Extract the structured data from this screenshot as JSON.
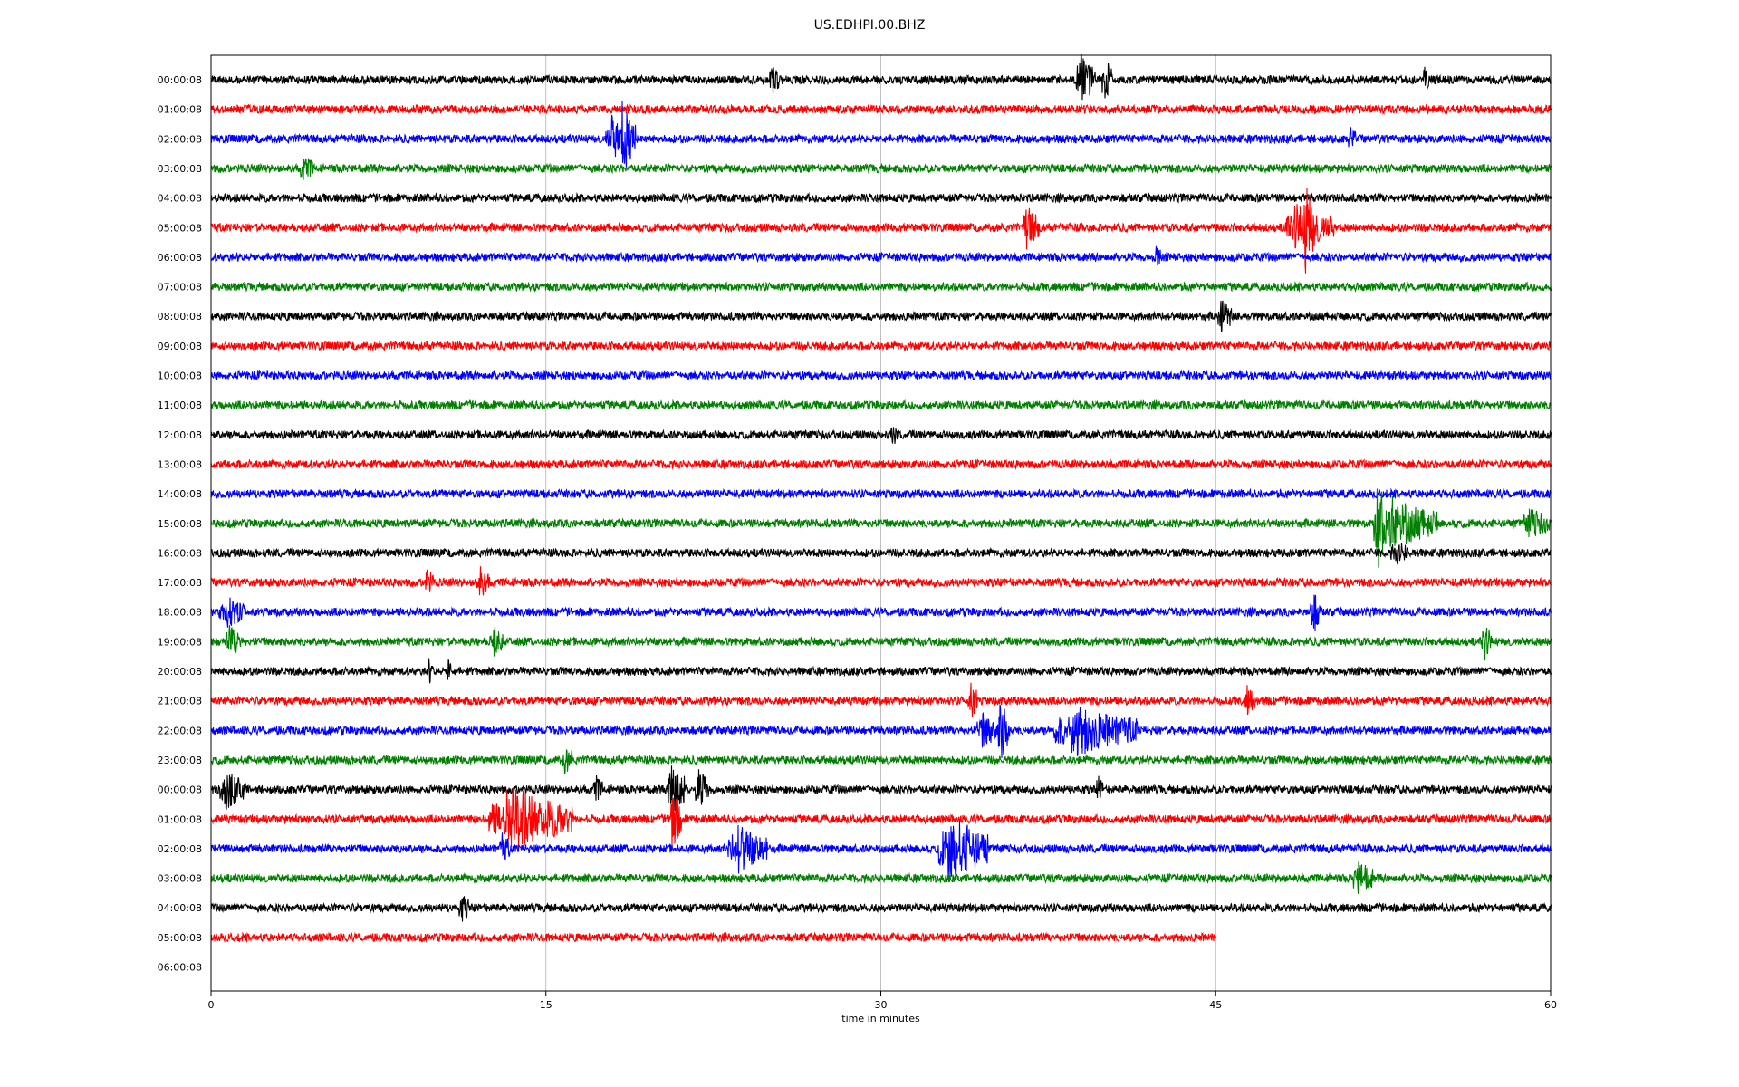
{
  "chart_data": {
    "type": "line",
    "title": "US.EDHPI.00.BHZ",
    "xlabel": "time in minutes",
    "ylabel": "",
    "xlim": [
      0,
      60
    ],
    "x_ticks": [
      0,
      15,
      30,
      45,
      60
    ],
    "grid": "vertical at x ticks",
    "colors": [
      "#000000",
      "#ff0000",
      "#0000ff",
      "#008000"
    ],
    "row_labels": [
      "00:00:08",
      "01:00:08",
      "02:00:08",
      "03:00:08",
      "04:00:08",
      "05:00:08",
      "06:00:08",
      "07:00:08",
      "08:00:08",
      "09:00:08",
      "10:00:08",
      "11:00:08",
      "12:00:08",
      "13:00:08",
      "14:00:08",
      "15:00:08",
      "16:00:08",
      "17:00:08",
      "18:00:08",
      "19:00:08",
      "20:00:08",
      "21:00:08",
      "22:00:08",
      "23:00:08",
      "00:00:08",
      "01:00:08",
      "02:00:08",
      "03:00:08",
      "04:00:08",
      "05:00:08",
      "06:00:08"
    ],
    "trace_end_minutes": [
      60,
      60,
      60,
      60,
      60,
      60,
      60,
      60,
      60,
      60,
      60,
      60,
      60,
      60,
      60,
      60,
      60,
      60,
      60,
      60,
      60,
      60,
      60,
      60,
      60,
      60,
      60,
      60,
      60,
      45,
      0
    ],
    "events": [
      {
        "row": 0,
        "t": 25.1,
        "amp": 0.35,
        "dur": 0.3
      },
      {
        "row": 0,
        "t": 38.9,
        "amp": 0.7,
        "dur": 0.6
      },
      {
        "row": 0,
        "t": 40.0,
        "amp": 0.9,
        "dur": 0.3
      },
      {
        "row": 0,
        "t": 54.3,
        "amp": 0.35,
        "dur": 0.2
      },
      {
        "row": 2,
        "t": 17.9,
        "amp": 0.6,
        "dur": 0.8
      },
      {
        "row": 2,
        "t": 18.4,
        "amp": 1.0,
        "dur": 0.5
      },
      {
        "row": 2,
        "t": 51.0,
        "amp": 0.3,
        "dur": 0.2
      },
      {
        "row": 3,
        "t": 4.1,
        "amp": 0.35,
        "dur": 0.4
      },
      {
        "row": 5,
        "t": 36.5,
        "amp": 0.6,
        "dur": 0.5
      },
      {
        "row": 5,
        "t": 48.5,
        "amp": 0.6,
        "dur": 1.5
      },
      {
        "row": 5,
        "t": 49.0,
        "amp": 1.4,
        "dur": 0.4
      },
      {
        "row": 6,
        "t": 42.3,
        "amp": 0.3,
        "dur": 0.2
      },
      {
        "row": 8,
        "t": 45.2,
        "amp": 0.5,
        "dur": 0.4
      },
      {
        "row": 12,
        "t": 30.5,
        "amp": 0.3,
        "dur": 0.2
      },
      {
        "row": 15,
        "t": 52.2,
        "amp": 1.4,
        "dur": 0.4
      },
      {
        "row": 15,
        "t": 52.8,
        "amp": 0.7,
        "dur": 1.8
      },
      {
        "row": 15,
        "t": 59.0,
        "amp": 0.4,
        "dur": 0.8
      },
      {
        "row": 16,
        "t": 53.0,
        "amp": 0.3,
        "dur": 0.5
      },
      {
        "row": 17,
        "t": 9.6,
        "amp": 0.35,
        "dur": 0.3
      },
      {
        "row": 17,
        "t": 12.0,
        "amp": 0.4,
        "dur": 0.4
      },
      {
        "row": 18,
        "t": 0.6,
        "amp": 0.4,
        "dur": 0.8
      },
      {
        "row": 18,
        "t": 49.3,
        "amp": 0.7,
        "dur": 0.3
      },
      {
        "row": 19,
        "t": 0.8,
        "amp": 0.4,
        "dur": 0.5
      },
      {
        "row": 19,
        "t": 12.6,
        "amp": 0.4,
        "dur": 0.4
      },
      {
        "row": 19,
        "t": 57.0,
        "amp": 0.5,
        "dur": 0.3
      },
      {
        "row": 20,
        "t": 9.7,
        "amp": 0.35,
        "dur": 0.2
      },
      {
        "row": 20,
        "t": 10.6,
        "amp": 0.7,
        "dur": 0.1
      },
      {
        "row": 21,
        "t": 34.0,
        "amp": 0.5,
        "dur": 0.3
      },
      {
        "row": 21,
        "t": 46.4,
        "amp": 0.35,
        "dur": 0.3
      },
      {
        "row": 22,
        "t": 34.5,
        "amp": 0.5,
        "dur": 0.6
      },
      {
        "row": 22,
        "t": 35.3,
        "amp": 1.0,
        "dur": 0.4
      },
      {
        "row": 22,
        "t": 38.5,
        "amp": 0.7,
        "dur": 2.5
      },
      {
        "row": 23,
        "t": 15.8,
        "amp": 0.35,
        "dur": 0.3
      },
      {
        "row": 24,
        "t": 0.6,
        "amp": 0.5,
        "dur": 0.8
      },
      {
        "row": 24,
        "t": 17.2,
        "amp": 0.35,
        "dur": 0.3
      },
      {
        "row": 24,
        "t": 20.6,
        "amp": 1.1,
        "dur": 0.5
      },
      {
        "row": 24,
        "t": 21.8,
        "amp": 0.6,
        "dur": 0.4
      },
      {
        "row": 24,
        "t": 39.7,
        "amp": 0.4,
        "dur": 0.2
      },
      {
        "row": 25,
        "t": 13.2,
        "amp": 0.9,
        "dur": 2.5
      },
      {
        "row": 25,
        "t": 20.6,
        "amp": 0.9,
        "dur": 0.4
      },
      {
        "row": 26,
        "t": 13.0,
        "amp": 0.4,
        "dur": 0.3
      },
      {
        "row": 26,
        "t": 23.5,
        "amp": 0.7,
        "dur": 1.2
      },
      {
        "row": 26,
        "t": 33.0,
        "amp": 1.0,
        "dur": 1.5
      },
      {
        "row": 27,
        "t": 51.3,
        "amp": 0.5,
        "dur": 0.6
      },
      {
        "row": 28,
        "t": 11.2,
        "amp": 0.35,
        "dur": 0.3
      }
    ]
  }
}
